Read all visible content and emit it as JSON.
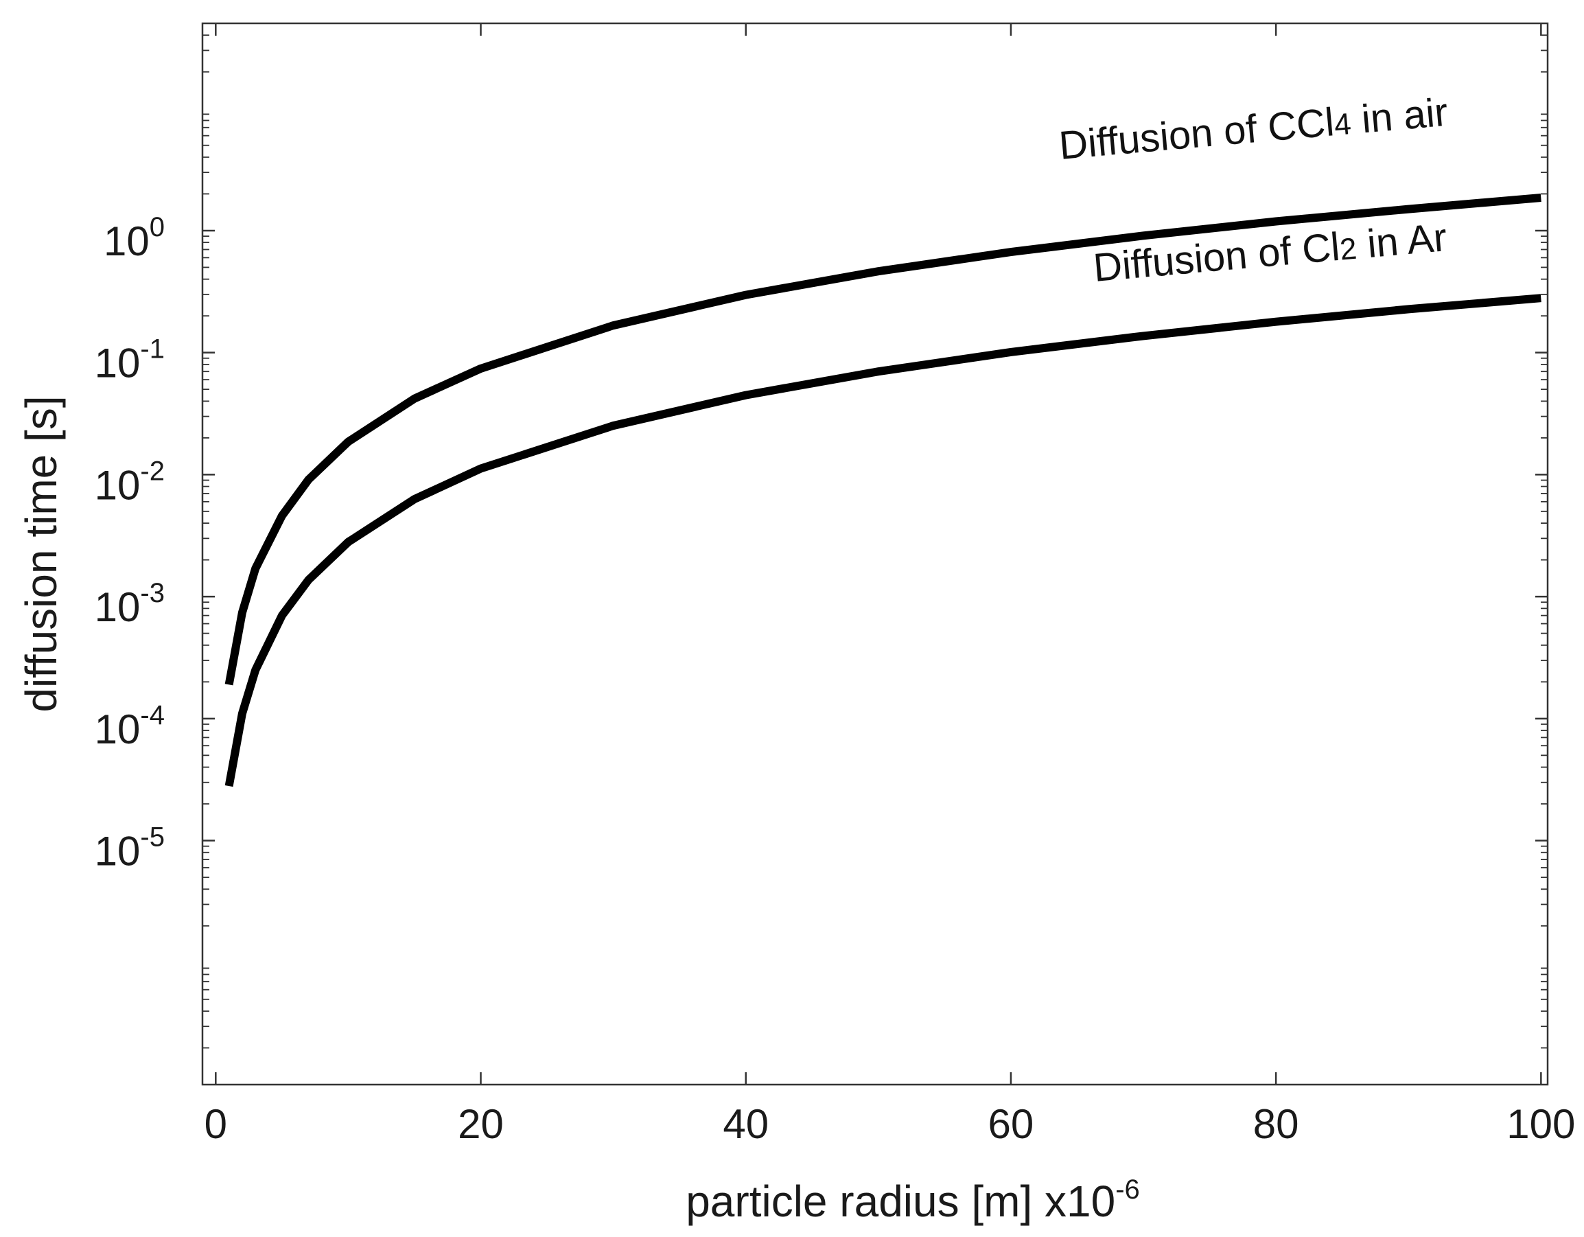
{
  "chart_data": {
    "type": "line",
    "xlabel": "particle radius [m] x10",
    "xlabel_exponent": "-6",
    "ylabel": "diffusion time [s]",
    "y_scale": "log",
    "xlim": [
      -1,
      100.5
    ],
    "ylim": [
      1e-07,
      50
    ],
    "grid": false,
    "x_ticks": [
      0,
      20,
      40,
      60,
      80,
      100
    ],
    "y_ticks": [
      {
        "base": "10",
        "exp": "0",
        "value": 1
      },
      {
        "base": "10",
        "exp": "-1",
        "value": 0.1
      },
      {
        "base": "10",
        "exp": "-2",
        "value": 0.01
      },
      {
        "base": "10",
        "exp": "-3",
        "value": 0.001
      },
      {
        "base": "10",
        "exp": "-4",
        "value": 0.0001
      },
      {
        "base": "10",
        "exp": "-5",
        "value": 1e-05
      }
    ],
    "line_color": "#000000",
    "series": [
      {
        "label_pre": "Diffusion of CCl",
        "label_sub": "4",
        "label_post": " in air",
        "x": [
          1,
          2,
          3,
          5,
          7,
          10,
          15,
          20,
          30,
          40,
          50,
          60,
          70,
          80,
          90,
          100
        ],
        "y": [
          0.00019,
          0.00074,
          0.0017,
          0.0046,
          0.0091,
          0.0186,
          0.042,
          0.074,
          0.167,
          0.297,
          0.464,
          0.668,
          0.909,
          1.19,
          1.5,
          1.86
        ]
      },
      {
        "label_pre": "Diffusion of Cl",
        "label_sub": "2",
        "label_post": " in Ar",
        "x": [
          1,
          2,
          3,
          5,
          7,
          10,
          15,
          20,
          30,
          40,
          50,
          60,
          70,
          80,
          90,
          100
        ],
        "y": [
          2.8e-05,
          0.00011,
          0.00025,
          0.0007,
          0.00137,
          0.0028,
          0.0063,
          0.0112,
          0.0252,
          0.0448,
          0.07,
          0.101,
          0.137,
          0.179,
          0.227,
          0.28
        ]
      }
    ]
  }
}
